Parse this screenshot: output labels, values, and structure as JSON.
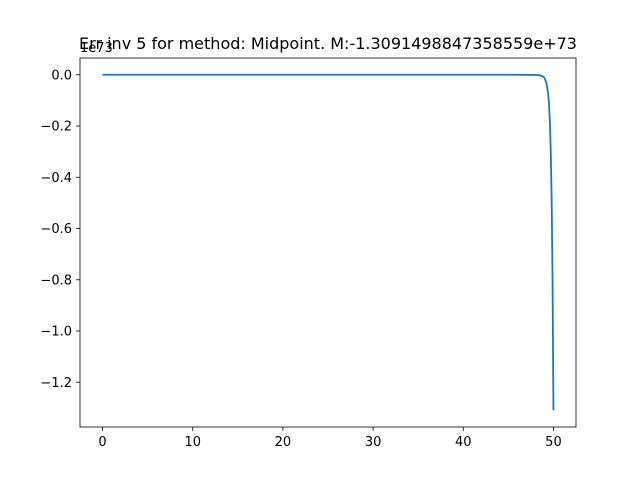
{
  "chart_data": {
    "type": "line",
    "title": "Err inv 5 for method: Midpoint. M:-1.3091498847358559e+73",
    "xlabel": "",
    "ylabel": "",
    "y_offset_text": "1e73",
    "xlim": [
      -2.5,
      52.5
    ],
    "ylim": [
      -1.3746,
      0.0655
    ],
    "x_ticks": [
      0,
      10,
      20,
      30,
      40,
      50
    ],
    "x_tick_labels": [
      "0",
      "10",
      "20",
      "30",
      "40",
      "50"
    ],
    "y_ticks": [
      0.0,
      -0.2,
      -0.4,
      -0.6,
      -0.8,
      -1.0,
      -1.2
    ],
    "y_tick_labels": [
      "0.0",
      "−0.2",
      "−0.4",
      "−0.6",
      "−0.8",
      "−1.0",
      "−1.2"
    ],
    "grid": false,
    "series": [
      {
        "color": "#1f77b4",
        "x": [
          0,
          5,
          10,
          15,
          20,
          25,
          30,
          35,
          40,
          45,
          47,
          48,
          48.5,
          48.8,
          49.0,
          49.2,
          49.4,
          49.5,
          49.6,
          49.7,
          49.8,
          49.9,
          50.0
        ],
        "y": [
          0,
          0,
          0,
          0,
          0,
          0,
          0,
          0,
          0,
          0,
          -0.0002,
          -0.0008,
          -0.002,
          -0.006,
          -0.012,
          -0.03,
          -0.07,
          -0.11,
          -0.18,
          -0.3,
          -0.48,
          -0.8,
          -1.3091
        ]
      }
    ]
  }
}
